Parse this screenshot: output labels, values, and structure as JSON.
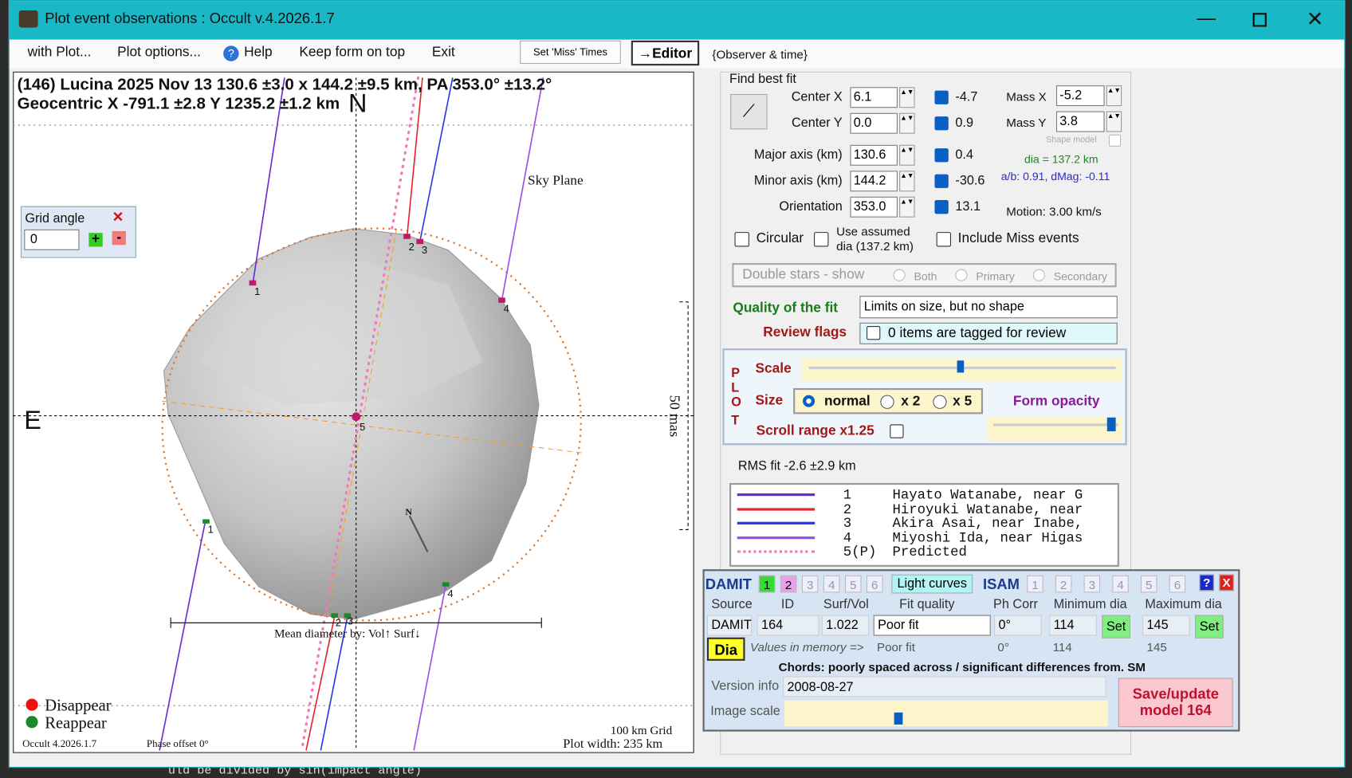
{
  "window": {
    "title": "Plot event observations : Occult v.4.2026.1.7"
  },
  "menu": [
    "with Plot...",
    "Plot options...",
    "Help",
    "Keep form on top",
    "Exit"
  ],
  "toolbar": {
    "set_miss": "Set 'Miss' Times",
    "editor": "→Editor",
    "observer": "{Observer & time}"
  },
  "plot": {
    "header": [
      "(146) Lucina  2025 Nov 13   130.6 ±3.0 x 144.2 ±9.5 km,  PA 353.0° ±13.2°",
      "Geocentric  X  -791.1 ±2.8  Y 1235.2 ±1.2 km"
    ],
    "north": "N",
    "east": "E",
    "sky_plane": "Sky Plane",
    "angular_scale": "50 mas",
    "mean_diameter": "Mean diameter by: Vol↑ Surf↓",
    "pole": "N",
    "chord_labels": [
      "1",
      "2",
      "3",
      "4",
      "5",
      "1",
      "2",
      "3",
      "4"
    ],
    "legend": [
      "Disappear",
      "Reappear"
    ],
    "version": "Occult 4.2026.1.7",
    "phase_offset": "Phase offset 0°",
    "grid": "100 km Grid",
    "plot_width": "Plot width: 235 km"
  },
  "grid_angle": {
    "title": "Grid angle",
    "value": "0"
  },
  "fit": {
    "title": "Find best fit",
    "params": [
      {
        "label": "Center X",
        "value": "6.1",
        "delta": "-4.7"
      },
      {
        "label": "Center Y",
        "value": "0.0",
        "delta": "0.9"
      },
      {
        "label": "Major axis (km)",
        "value": "130.6",
        "delta": "0.4"
      },
      {
        "label": "Minor axis (km)",
        "value": "144.2",
        "delta": "-30.6"
      },
      {
        "label": "Orientation",
        "value": "353.0",
        "delta": "13.1"
      }
    ],
    "mass": [
      {
        "label": "Mass X",
        "value": "-5.2"
      },
      {
        "label": "Mass Y",
        "value": "3.8"
      }
    ],
    "shape_model": "Shape model",
    "dia": "dia = 137.2 km",
    "ratio": "a/b: 0.91, dMag: -0.11",
    "motion": "Motion: 3.00 km/s",
    "circular": "Circular",
    "assumed": "Use assumed dia (137.2 km)",
    "include_miss": "Include Miss events",
    "double_stars": "Double stars - show",
    "double_options": [
      "Both",
      "Primary",
      "Secondary"
    ],
    "quality_label": "Quality of the fit",
    "quality": "Limits on size, but no shape",
    "review_label": "Review flags",
    "review": "0 items are tagged for review"
  },
  "plot_options": {
    "letters": [
      "P",
      "L",
      "O",
      "T"
    ],
    "scale": "Scale",
    "size": "Size",
    "sizes": [
      "normal",
      "x 2",
      "x 5"
    ],
    "opacity": "Form opacity",
    "scroll": "Scroll range x1.25"
  },
  "rms": "RMS fit -2.6 ±2.9 km",
  "observers": [
    {
      "id": "1",
      "name": "Hayato Watanabe, near G",
      "color": "#6a2bd0"
    },
    {
      "id": "2",
      "name": "Hiroyuki Watanabe, near",
      "color": "#e8232b"
    },
    {
      "id": "3",
      "name": "Akira Asai, near Inabe,",
      "color": "#2a35e8"
    },
    {
      "id": "4",
      "name": "Miyoshi Ida, near Higas",
      "color": "#9a4ee8"
    },
    {
      "id": "5(P)",
      "name": "Predicted",
      "color": "#f07aba"
    }
  ],
  "damit": {
    "title": "DAMIT",
    "models": [
      "1",
      "2",
      "3",
      "4",
      "5",
      "6"
    ],
    "light_curves": "Light curves",
    "isam": "ISAM",
    "isam_models": [
      "1",
      "2",
      "3",
      "4",
      "5",
      "6"
    ],
    "help": "?",
    "close": "X",
    "headers": [
      "Source",
      "ID",
      "Surf/Vol",
      "Fit quality",
      "Ph Corr",
      "Minimum dia",
      "Maximum dia"
    ],
    "values": [
      "DAMIT",
      "164",
      "1.022",
      "Poor fit",
      "0°",
      "114",
      "145"
    ],
    "set": "Set",
    "dia": "Dia",
    "memory_label": "Values in memory =>",
    "memory": [
      "Poor fit",
      "0°",
      "114",
      "145"
    ],
    "chords": "Chords: poorly spaced across / significant differences from. SM",
    "version_label": "Version info",
    "version": "2008-08-27",
    "image_scale": "Image scale",
    "save": "Save/update model 164"
  },
  "background_text": "uld be divided by sin(impact angle)"
}
